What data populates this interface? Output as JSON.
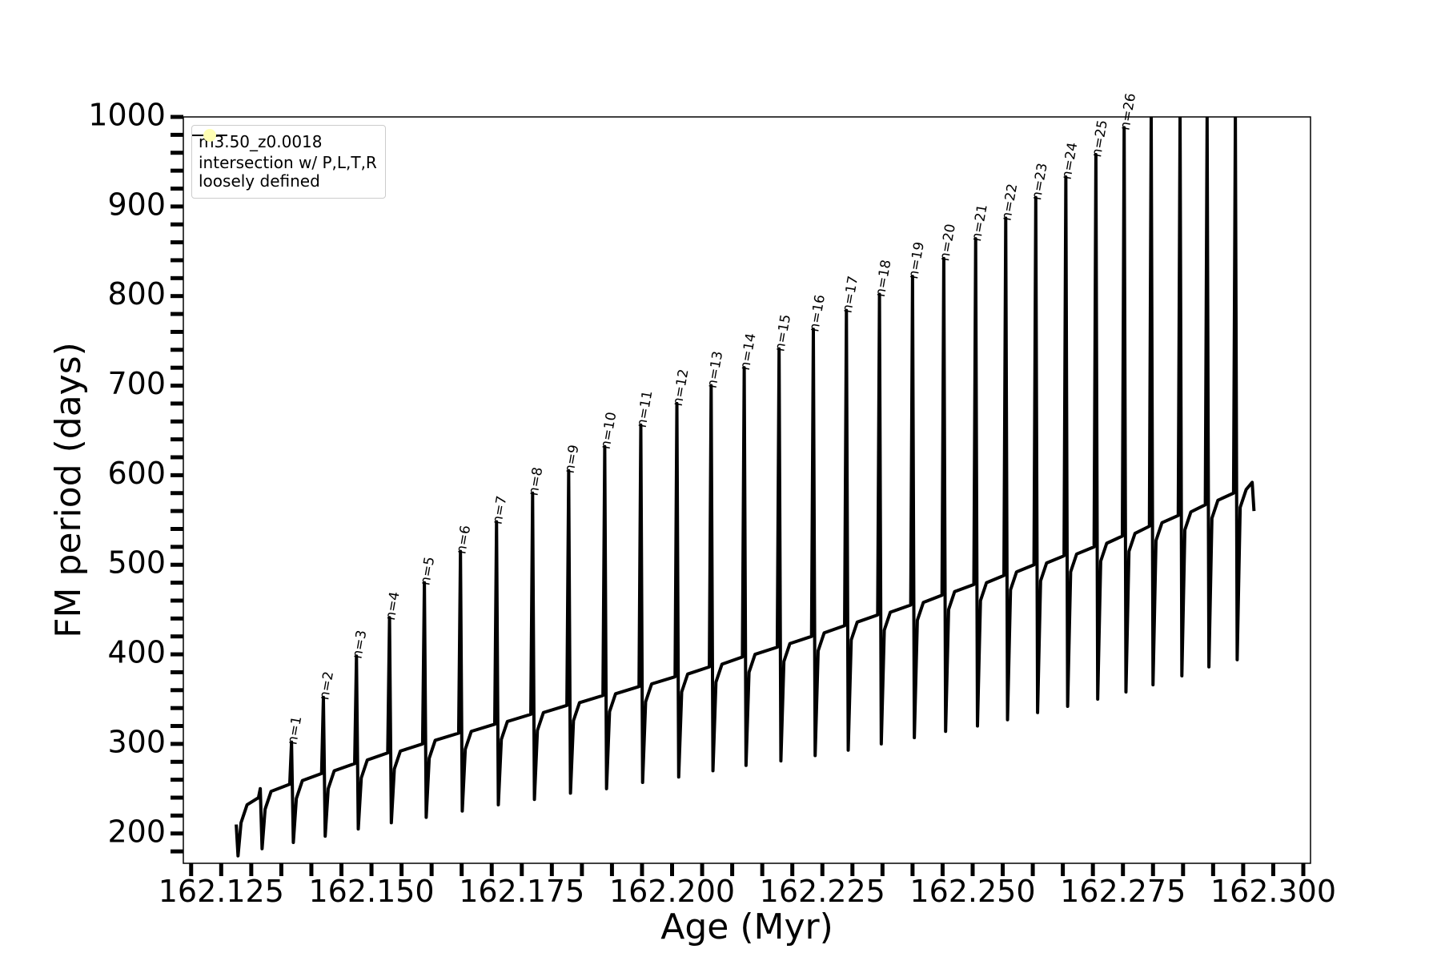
{
  "chart_data": {
    "type": "line",
    "xlabel": "Age (Myr)",
    "ylabel": "FM period (days)",
    "xlim": [
      162.1187,
      162.3062
    ],
    "ylim": [
      166.7,
      1000
    ],
    "xticks": [
      162.125,
      {
        "value": 162.15,
        "label": "162.150"
      },
      162.175,
      {
        "value": 162.2,
        "label": "162.200"
      },
      162.225,
      {
        "value": 162.25,
        "label": "162.250"
      },
      162.275,
      {
        "value": 162.3,
        "label": "162.300"
      }
    ],
    "yticks": [
      200,
      300,
      400,
      500,
      600,
      700,
      800,
      900,
      1000
    ],
    "xminorticks": [
      162.12,
      162.13,
      162.135,
      162.14,
      162.145,
      162.155,
      162.16,
      162.165,
      162.17,
      162.18,
      162.185,
      162.19,
      162.195,
      162.205,
      162.21,
      162.215,
      162.22,
      162.23,
      162.235,
      162.24,
      162.245,
      162.255,
      162.26,
      162.265,
      162.27,
      162.28,
      162.285,
      162.29,
      162.295,
      162.305
    ],
    "yminorticks": [
      180,
      220,
      240,
      260,
      280,
      320,
      340,
      360,
      380,
      420,
      440,
      460,
      480,
      520,
      540,
      560,
      580,
      620,
      640,
      660,
      680,
      720,
      740,
      760,
      780,
      820,
      840,
      860,
      880,
      920,
      940,
      960,
      980
    ],
    "legend": "upper left",
    "series": [
      {
        "name": "m3.50_z0.0018",
        "color": "#000000",
        "x": [
          162.1275,
          162.1278,
          162.1283,
          162.1293,
          162.1312,
          162.1315,
          162.1318,
          162.1323,
          162.1333,
          162.1364,
          162.1367,
          162.137,
          162.1375,
          162.1385,
          162.1417,
          162.142,
          162.1423,
          162.1428,
          162.1438,
          162.1472,
          162.1475,
          162.1478,
          162.1483,
          162.1493,
          162.1527,
          162.153,
          162.1533,
          162.1538,
          162.1548,
          162.1585,
          162.1588,
          162.1591,
          162.1596,
          162.1606,
          162.1645,
          162.1648,
          162.1651,
          162.1656,
          162.1666,
          162.1705,
          162.1708,
          162.1711,
          162.1716,
          162.1726,
          162.1765,
          162.1768,
          162.1771,
          162.1776,
          162.1786,
          162.1825,
          162.1828,
          162.1831,
          162.1836,
          162.1846,
          162.1885,
          162.1888,
          162.1891,
          162.1896,
          162.1906,
          162.1945,
          162.1948,
          162.1951,
          162.1956,
          162.1966,
          162.2005,
          162.2008,
          162.2011,
          162.2016,
          162.2026,
          162.2062,
          162.2065,
          162.2068,
          162.2073,
          162.2083,
          162.2117,
          162.212,
          162.2123,
          162.2128,
          162.2138,
          162.2175,
          162.2178,
          162.2181,
          162.2186,
          162.2196,
          162.2232,
          162.2235,
          162.2238,
          162.2243,
          162.2253,
          162.2287,
          162.229,
          162.2293,
          162.2298,
          162.2308,
          162.2342,
          162.2345,
          162.2348,
          162.2353,
          162.2363,
          162.2397,
          162.24,
          162.2403,
          162.2408,
          162.2418,
          162.2449,
          162.2452,
          162.2455,
          162.246,
          162.247,
          162.2502,
          162.2505,
          162.2508,
          162.2513,
          162.2523,
          162.2552,
          162.2555,
          162.2558,
          162.2563,
          162.2573,
          162.2602,
          162.2605,
          162.2608,
          162.2613,
          162.2623,
          162.2652,
          162.2655,
          162.2658,
          162.2663,
          162.2673,
          162.2702,
          162.2705,
          162.2708,
          162.2713,
          162.2723,
          162.2749,
          162.2752,
          162.2755,
          162.276,
          162.277,
          162.2794,
          162.2797,
          162.28,
          162.2805,
          162.2815,
          162.2842,
          162.2845,
          162.2848,
          162.2853,
          162.2863,
          162.2887,
          162.289,
          162.2893,
          162.2898,
          162.2908,
          162.2934,
          162.2937,
          162.294,
          162.2945,
          162.2955,
          162.2965,
          162.2968
        ],
        "values": [
          210,
          175,
          212,
          232,
          240,
          250,
          183,
          227,
          247,
          255,
          302,
          190,
          239,
          259,
          267,
          352,
          197,
          250,
          270,
          278,
          398,
          205,
          262,
          282,
          290,
          441,
          212,
          272,
          292,
          300,
          480,
          218,
          284,
          304,
          312,
          515,
          225,
          294,
          314,
          322,
          548,
          232,
          305,
          325,
          333,
          580,
          238,
          315,
          335,
          343,
          605,
          245,
          326,
          346,
          354,
          632,
          250,
          336,
          356,
          364,
          656,
          257,
          347,
          367,
          375,
          680,
          263,
          358,
          378,
          386,
          700,
          270,
          369,
          389,
          397,
          720,
          276,
          380,
          400,
          408,
          741,
          281,
          392,
          412,
          420,
          763,
          287,
          404,
          424,
          432,
          784,
          293,
          416,
          436,
          444,
          802,
          300,
          427,
          447,
          455,
          822,
          307,
          438,
          458,
          466,
          842,
          314,
          450,
          470,
          478,
          864,
          320,
          460,
          480,
          488,
          887,
          327,
          472,
          492,
          500,
          910,
          335,
          482,
          502,
          510,
          933,
          342,
          492,
          512,
          520,
          958,
          350,
          504,
          524,
          532,
          988,
          358,
          515,
          535,
          543,
          1000,
          366,
          527,
          547,
          555,
          1000,
          376,
          539,
          559,
          567,
          1000,
          386,
          552,
          572,
          580,
          1000,
          394,
          564,
          584,
          592,
          560
        ]
      },
      {
        "name": "intersection w/ P,L,T,R\nloosely defined",
        "color": "#ffffb3"
      }
    ],
    "annotations": [
      {
        "text": "n=1",
        "x": 162.1367,
        "y": 302
      },
      {
        "text": "n=2",
        "x": 162.142,
        "y": 352
      },
      {
        "text": "n=3",
        "x": 162.1475,
        "y": 398
      },
      {
        "text": "n=4",
        "x": 162.153,
        "y": 441
      },
      {
        "text": "n=5",
        "x": 162.1588,
        "y": 480
      },
      {
        "text": "n=6",
        "x": 162.1648,
        "y": 515
      },
      {
        "text": "n=7",
        "x": 162.1708,
        "y": 548
      },
      {
        "text": "n=8",
        "x": 162.1768,
        "y": 580
      },
      {
        "text": "n=9",
        "x": 162.1828,
        "y": 605
      },
      {
        "text": "n=10",
        "x": 162.1888,
        "y": 632
      },
      {
        "text": "n=11",
        "x": 162.1948,
        "y": 656
      },
      {
        "text": "n=12",
        "x": 162.2008,
        "y": 680
      },
      {
        "text": "n=13",
        "x": 162.2065,
        "y": 700
      },
      {
        "text": "n=14",
        "x": 162.212,
        "y": 720
      },
      {
        "text": "n=15",
        "x": 162.2178,
        "y": 741
      },
      {
        "text": "n=16",
        "x": 162.2235,
        "y": 763
      },
      {
        "text": "n=17",
        "x": 162.229,
        "y": 784
      },
      {
        "text": "n=18",
        "x": 162.2345,
        "y": 802
      },
      {
        "text": "n=19",
        "x": 162.24,
        "y": 822
      },
      {
        "text": "n=20",
        "x": 162.2452,
        "y": 842
      },
      {
        "text": "n=21",
        "x": 162.2505,
        "y": 864
      },
      {
        "text": "n=22",
        "x": 162.2555,
        "y": 887
      },
      {
        "text": "n=23",
        "x": 162.2605,
        "y": 910
      },
      {
        "text": "n=24",
        "x": 162.2655,
        "y": 933
      },
      {
        "text": "n=25",
        "x": 162.2705,
        "y": 958
      },
      {
        "text": "n=26",
        "x": 162.2752,
        "y": 988
      }
    ]
  }
}
